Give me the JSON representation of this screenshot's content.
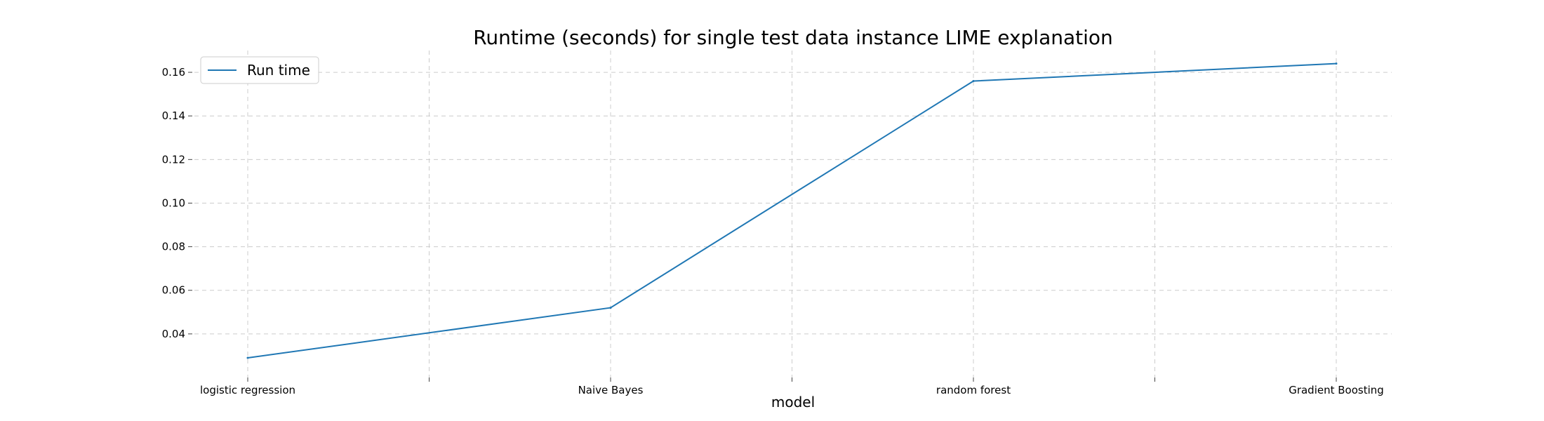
{
  "chart_data": {
    "type": "line",
    "title": "Runtime (seconds) for single test data instance LIME explanation",
    "xlabel": "model",
    "ylabel": "",
    "categories": [
      "logistic regression",
      "Naive Bayes",
      "random forest",
      "Gradient Boosting"
    ],
    "series": [
      {
        "name": "Run time",
        "color": "#1f77b4",
        "values": [
          0.029,
          0.052,
          0.156,
          0.164
        ]
      }
    ],
    "ylim": [
      0.02,
      0.17
    ],
    "yticks": [
      0.04,
      0.06,
      0.08,
      0.1,
      0.12,
      0.14,
      0.16
    ],
    "ytick_labels": [
      "0.04",
      "0.06",
      "0.08",
      "0.10",
      "0.12",
      "0.14",
      "0.16"
    ],
    "grid": true,
    "legend_position": "top-left"
  }
}
